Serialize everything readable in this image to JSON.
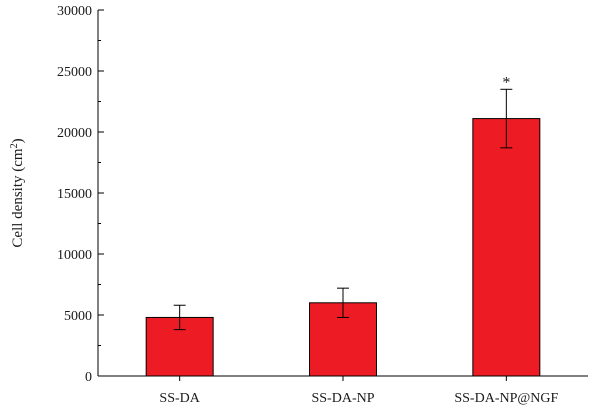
{
  "chart_data": {
    "type": "bar",
    "categories": [
      "SS-DA",
      "SS-DA-NP",
      "SS-DA-NP@NGF"
    ],
    "values": [
      4800,
      6000,
      21100
    ],
    "error": [
      1000,
      1200,
      2400
    ],
    "annotations": [
      "",
      "",
      "*"
    ],
    "ylabel_main": "Cell density (cm",
    "ylabel_sup": "2",
    "ylabel_tail": ")",
    "ylim": [
      0,
      30000
    ],
    "yticks": [
      0,
      5000,
      10000,
      15000,
      20000,
      25000,
      30000
    ],
    "grid": false,
    "bar_color": "#ed1c24"
  }
}
